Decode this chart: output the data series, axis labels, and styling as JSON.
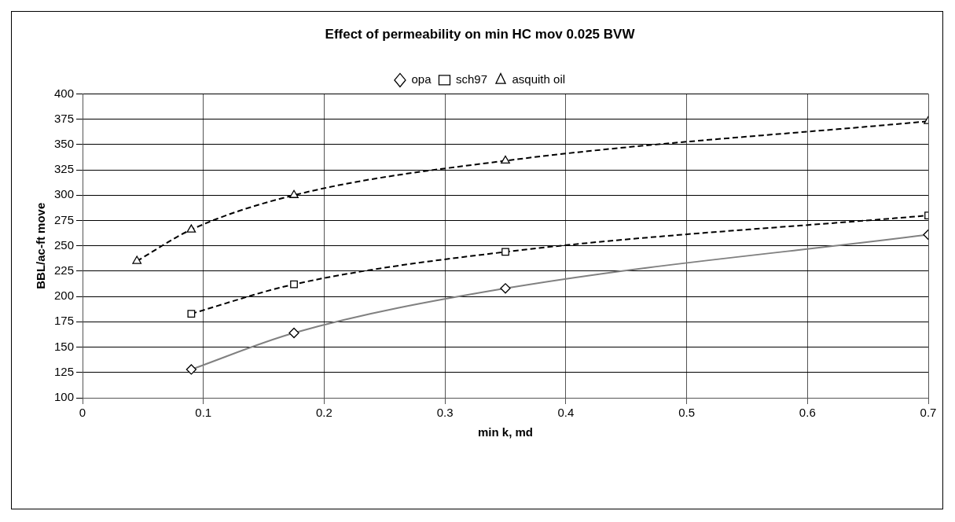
{
  "chart_data": {
    "type": "line",
    "title": "Effect of permeability on min HC mov 0.025 BVW",
    "xlabel": "min k, md",
    "ylabel": "BBL/ac-ft move",
    "xlim": [
      0,
      0.7
    ],
    "xticks": [
      0,
      0.1,
      0.2,
      0.3,
      0.4,
      0.5,
      0.6,
      0.7
    ],
    "ylim": [
      100,
      400
    ],
    "yticks": [
      100,
      125,
      150,
      175,
      200,
      225,
      250,
      275,
      300,
      325,
      350,
      375,
      400
    ],
    "grid": true,
    "legend": "top",
    "series": [
      {
        "name": "opa",
        "color": "#808080",
        "x": [
          0.09,
          0.175,
          0.35,
          0.7
        ],
        "values": [
          128,
          164,
          208,
          261
        ],
        "marker": "diamond",
        "line_style": "solid"
      },
      {
        "name": "sch97",
        "color": "#000000",
        "x": [
          0.09,
          0.175,
          0.35,
          0.7
        ],
        "values": [
          183,
          212,
          244,
          280
        ],
        "marker": "square",
        "line_style": "dashed"
      },
      {
        "name": "asquith oil",
        "color": "#000000",
        "x": [
          0.045,
          0.09,
          0.175,
          0.35,
          0.7
        ],
        "values": [
          235,
          266,
          300,
          334,
          373
        ],
        "marker": "triangle",
        "line_style": "dashed"
      }
    ]
  }
}
